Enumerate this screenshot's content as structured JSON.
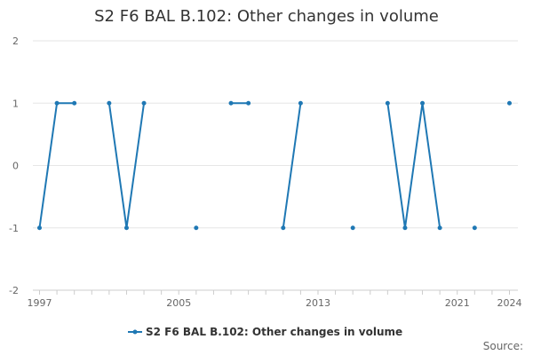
{
  "chart_data": {
    "type": "line",
    "title": "S2 F6 BAL B.102: Other changes in volume",
    "xlabel": "",
    "ylabel": "",
    "xlim": [
      1997,
      2024
    ],
    "ylim": [
      -2,
      2
    ],
    "x_ticks": [
      1997,
      2005,
      2013,
      2021,
      2024
    ],
    "y_ticks": [
      2,
      1,
      0,
      -1,
      -2
    ],
    "grid": true,
    "legend_position": "bottom",
    "source_label": "Source:",
    "series": [
      {
        "name": "S2 F6 BAL B.102: Other changes in volume",
        "color": "#1f78b4",
        "points": [
          {
            "x": 1997,
            "y": -1
          },
          {
            "x": 1998,
            "y": 1
          },
          {
            "x": 1999,
            "y": 1
          },
          {
            "x": 2001,
            "y": 1
          },
          {
            "x": 2002,
            "y": -1
          },
          {
            "x": 2003,
            "y": 1
          },
          {
            "x": 2006,
            "y": -1
          },
          {
            "x": 2008,
            "y": 1
          },
          {
            "x": 2009,
            "y": 1
          },
          {
            "x": 2011,
            "y": -1
          },
          {
            "x": 2012,
            "y": 1
          },
          {
            "x": 2015,
            "y": -1
          },
          {
            "x": 2017,
            "y": 1
          },
          {
            "x": 2018,
            "y": -1
          },
          {
            "x": 2019,
            "y": 1
          },
          {
            "x": 2020,
            "y": -1
          },
          {
            "x": 2022,
            "y": -1
          },
          {
            "x": 2024,
            "y": 1
          }
        ]
      }
    ]
  }
}
